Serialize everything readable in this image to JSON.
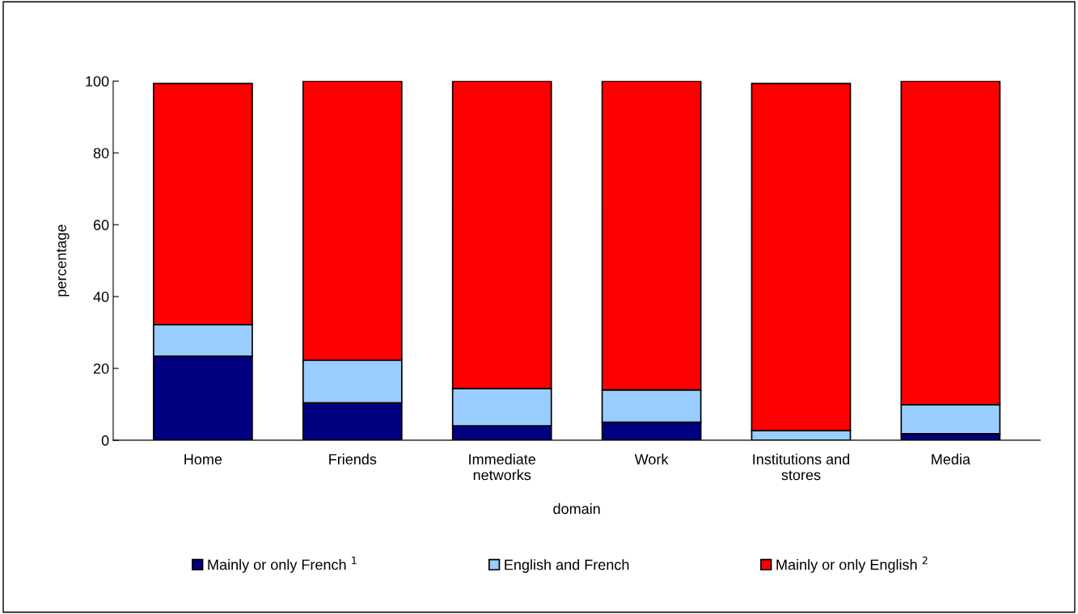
{
  "chart_data": {
    "type": "bar",
    "stacked": true,
    "xlabel": "domain",
    "ylabel": "percentage",
    "categories": [
      "Home",
      "Friends",
      "Immediate\nnetworks",
      "Work",
      "Institutions and\nstores",
      "Media"
    ],
    "series": [
      {
        "name": "Mainly or only French $^{1}$",
        "color": "#000080",
        "values": [
          23.4,
          10.4,
          4.0,
          5.0,
          0,
          1.8
        ]
      },
      {
        "name": "English and French",
        "color": "#99ccff",
        "values": [
          8.8,
          11.9,
          10.4,
          9.0,
          2.7,
          8.1
        ]
      },
      {
        "name": "Mainly or only English $^{2}$",
        "color": "#ff0000",
        "values": [
          67.1,
          77.7,
          85.6,
          86.0,
          96.6,
          90.1
        ]
      }
    ],
    "ylim": [
      0,
      100
    ],
    "yticks": [
      0,
      20,
      40,
      60,
      80,
      100
    ],
    "grid": false,
    "legend": "bottom"
  }
}
